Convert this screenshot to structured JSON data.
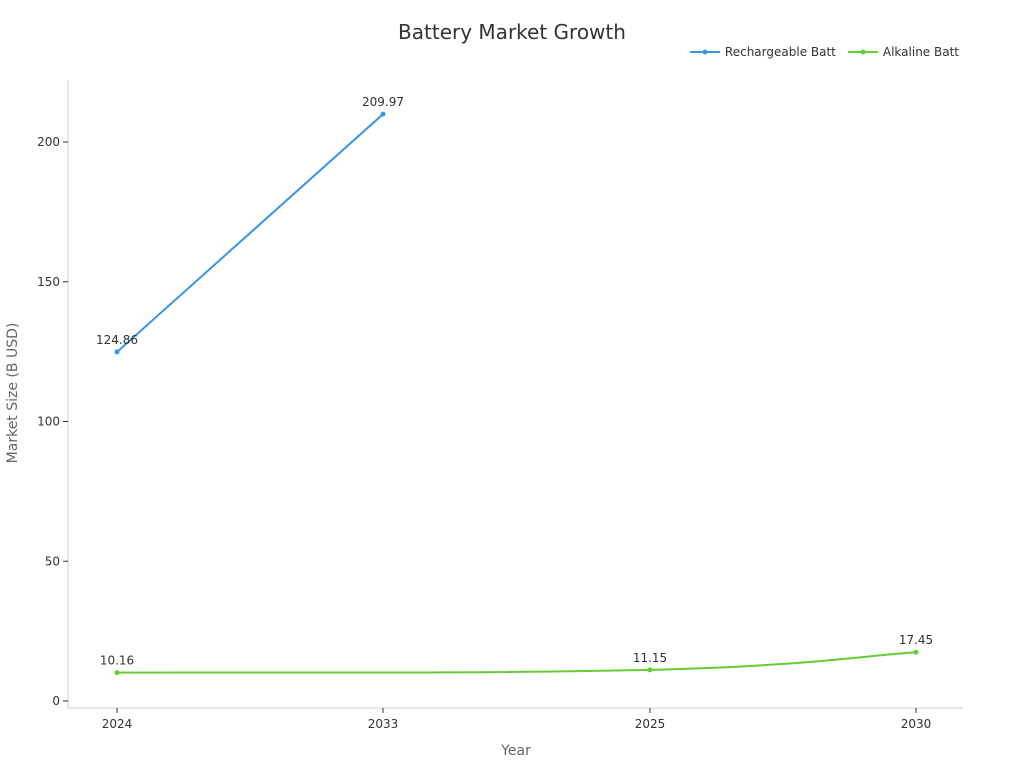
{
  "chart_data": {
    "type": "line",
    "title": "Battery Market Growth",
    "xlabel": "Year",
    "ylabel": "Market Size (B USD)",
    "categories": [
      "2024",
      "2033",
      "2025",
      "2030"
    ],
    "ylim": [
      0,
      220
    ],
    "yticks": [
      0,
      50,
      100,
      150,
      200
    ],
    "grid": false,
    "legend_position": "top-right",
    "series": [
      {
        "name": "Rechargeable Batt",
        "color": "#3a95dd",
        "values": [
          124.86,
          209.97,
          null,
          null
        ]
      },
      {
        "name": "Alkaline Batt",
        "color": "#66cc33",
        "values": [
          10.16,
          null,
          11.15,
          17.45
        ]
      }
    ]
  }
}
